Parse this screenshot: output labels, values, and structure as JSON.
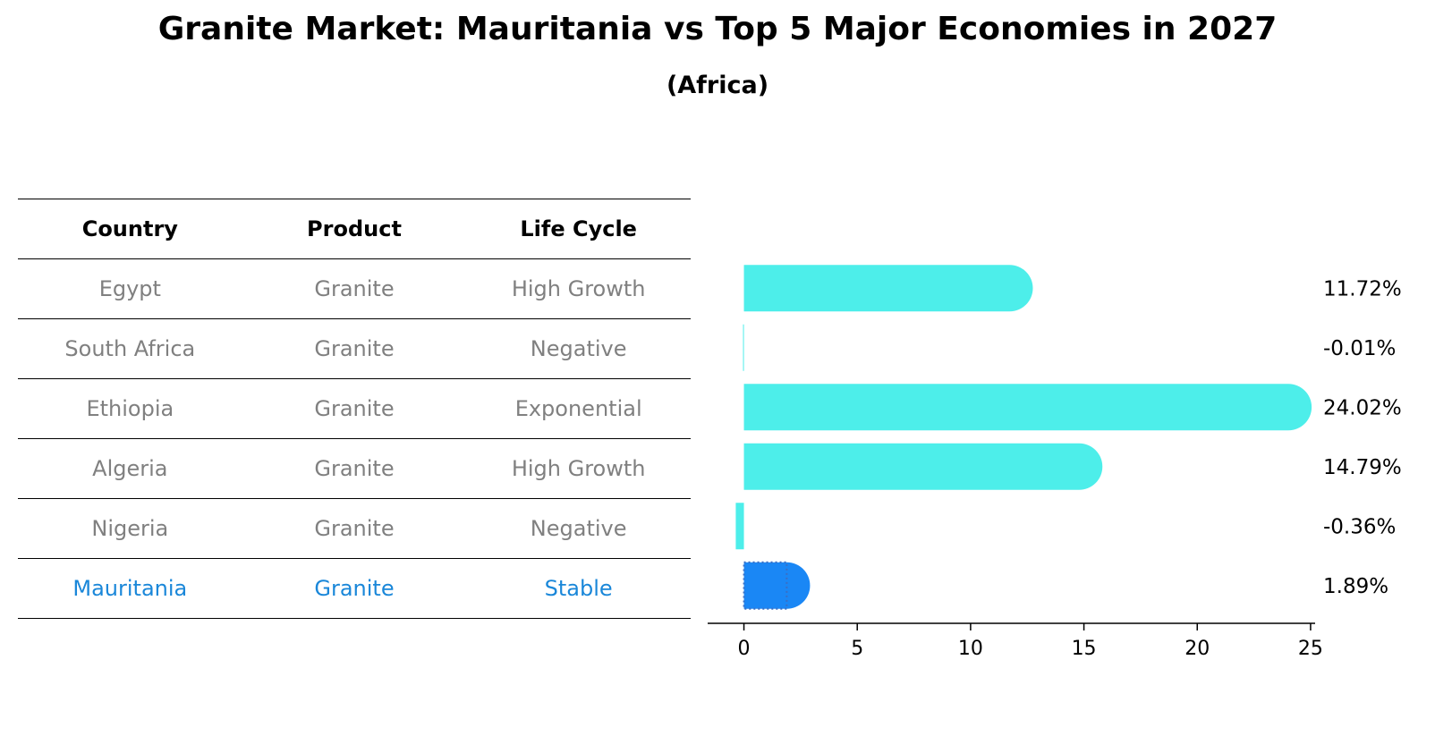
{
  "title": "Granite Market: Mauritania vs Top 5 Major Economies in 2027",
  "subtitle": "(Africa)",
  "table": {
    "headers": [
      "Country",
      "Product",
      "Life Cycle"
    ],
    "rows": [
      {
        "country": "Egypt",
        "product": "Granite",
        "life_cycle": "High Growth"
      },
      {
        "country": "South Africa",
        "product": "Granite",
        "life_cycle": "Negative"
      },
      {
        "country": "Ethiopia",
        "product": "Granite",
        "life_cycle": "Exponential"
      },
      {
        "country": "Algeria",
        "product": "Granite",
        "life_cycle": "High Growth"
      },
      {
        "country": "Nigeria",
        "product": "Granite",
        "life_cycle": "Negative"
      },
      {
        "country": "Mauritania",
        "product": "Granite",
        "life_cycle": "Stable"
      }
    ]
  },
  "chart_data": {
    "type": "bar",
    "orientation": "horizontal",
    "categories": [
      "Egypt",
      "South Africa",
      "Ethiopia",
      "Algeria",
      "Nigeria",
      "Mauritania"
    ],
    "values": [
      11.72,
      -0.01,
      24.02,
      14.79,
      -0.36,
      1.89
    ],
    "value_labels": [
      "11.72%",
      "-0.01%",
      "24.02%",
      "14.79%",
      "-0.36%",
      "1.89%"
    ],
    "highlight": "Mauritania",
    "xticks": [
      "0",
      "5",
      "10",
      "15",
      "20",
      "25"
    ],
    "xlim": [
      -1.6,
      25.2
    ],
    "colors": {
      "bar": "#4deeea",
      "highlight": "#1a87f5",
      "highlight_text": "#1a87d9",
      "muted_text": "#808080"
    }
  }
}
